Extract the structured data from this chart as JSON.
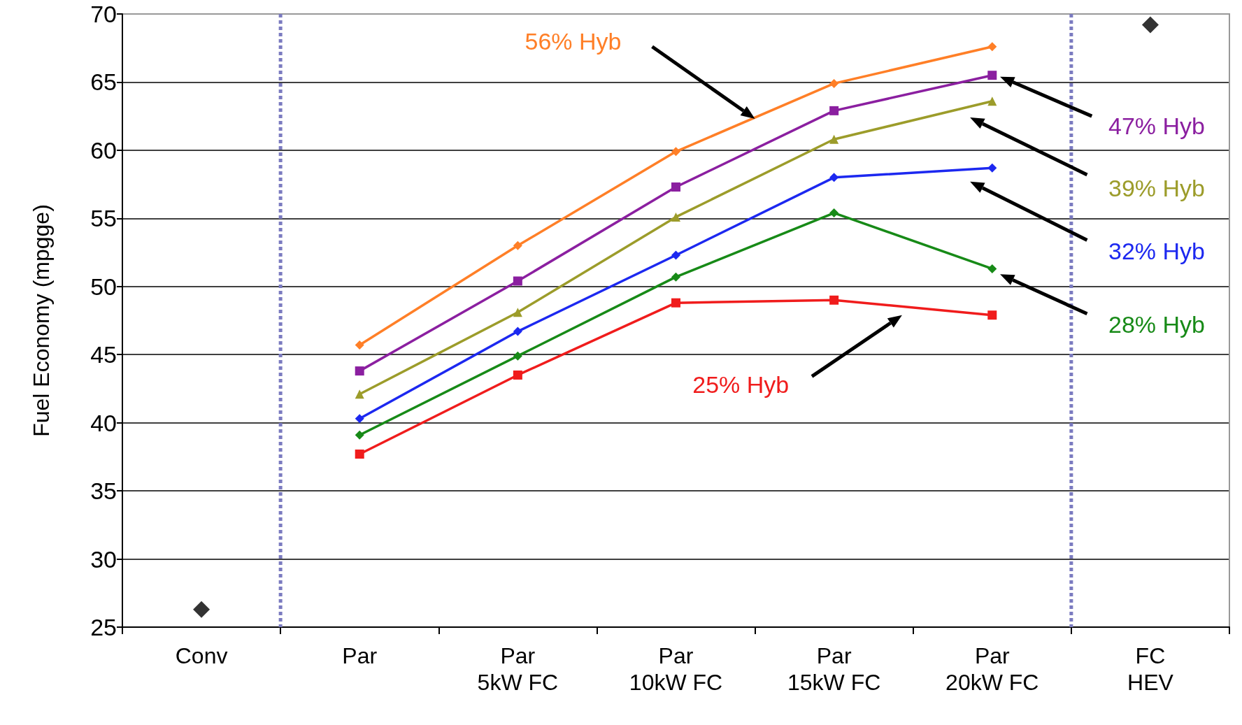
{
  "chart_data": {
    "type": "line",
    "ylabel": "Fuel Economy (mpgge)",
    "categories": [
      "Conv",
      "Par",
      "Par\n5kW FC",
      "Par\n10kW FC",
      "Par\n15kW FC",
      "Par\n20kW FC",
      "FC\nHEV"
    ],
    "series": [
      {
        "name": "56% Hyb",
        "color": "#ff7f27",
        "marker": "diamond",
        "values": [
          null,
          45.7,
          53.0,
          59.9,
          64.9,
          67.6,
          null
        ]
      },
      {
        "name": "47% Hyb",
        "color": "#8b1fa0",
        "marker": "square",
        "values": [
          null,
          43.8,
          50.4,
          57.3,
          62.9,
          65.5,
          null
        ]
      },
      {
        "name": "39% Hyb",
        "color": "#9c9c2a",
        "marker": "triangle",
        "values": [
          null,
          42.1,
          48.1,
          55.1,
          60.8,
          63.6,
          null
        ]
      },
      {
        "name": "32% Hyb",
        "color": "#1c28f0",
        "marker": "diamond",
        "values": [
          null,
          40.3,
          46.7,
          52.3,
          58.0,
          58.7,
          null
        ]
      },
      {
        "name": "28% Hyb",
        "color": "#178a17",
        "marker": "diamond",
        "values": [
          null,
          39.1,
          44.9,
          50.7,
          55.4,
          51.3,
          null
        ]
      },
      {
        "name": "25% Hyb",
        "color": "#f01c1c",
        "marker": "square",
        "values": [
          null,
          37.7,
          43.5,
          48.8,
          49.0,
          47.9,
          null
        ]
      },
      {
        "type": "scatter",
        "color": "#000000",
        "marker": "diamond",
        "x": [
          "Conv",
          "FC\nHEV"
        ],
        "values": [
          26.3,
          69.2
        ]
      }
    ],
    "ylim": [
      25,
      70
    ],
    "yticks": [
      25,
      30,
      35,
      40,
      45,
      50,
      55,
      60,
      65,
      70
    ],
    "grid": "y",
    "legend": false
  }
}
